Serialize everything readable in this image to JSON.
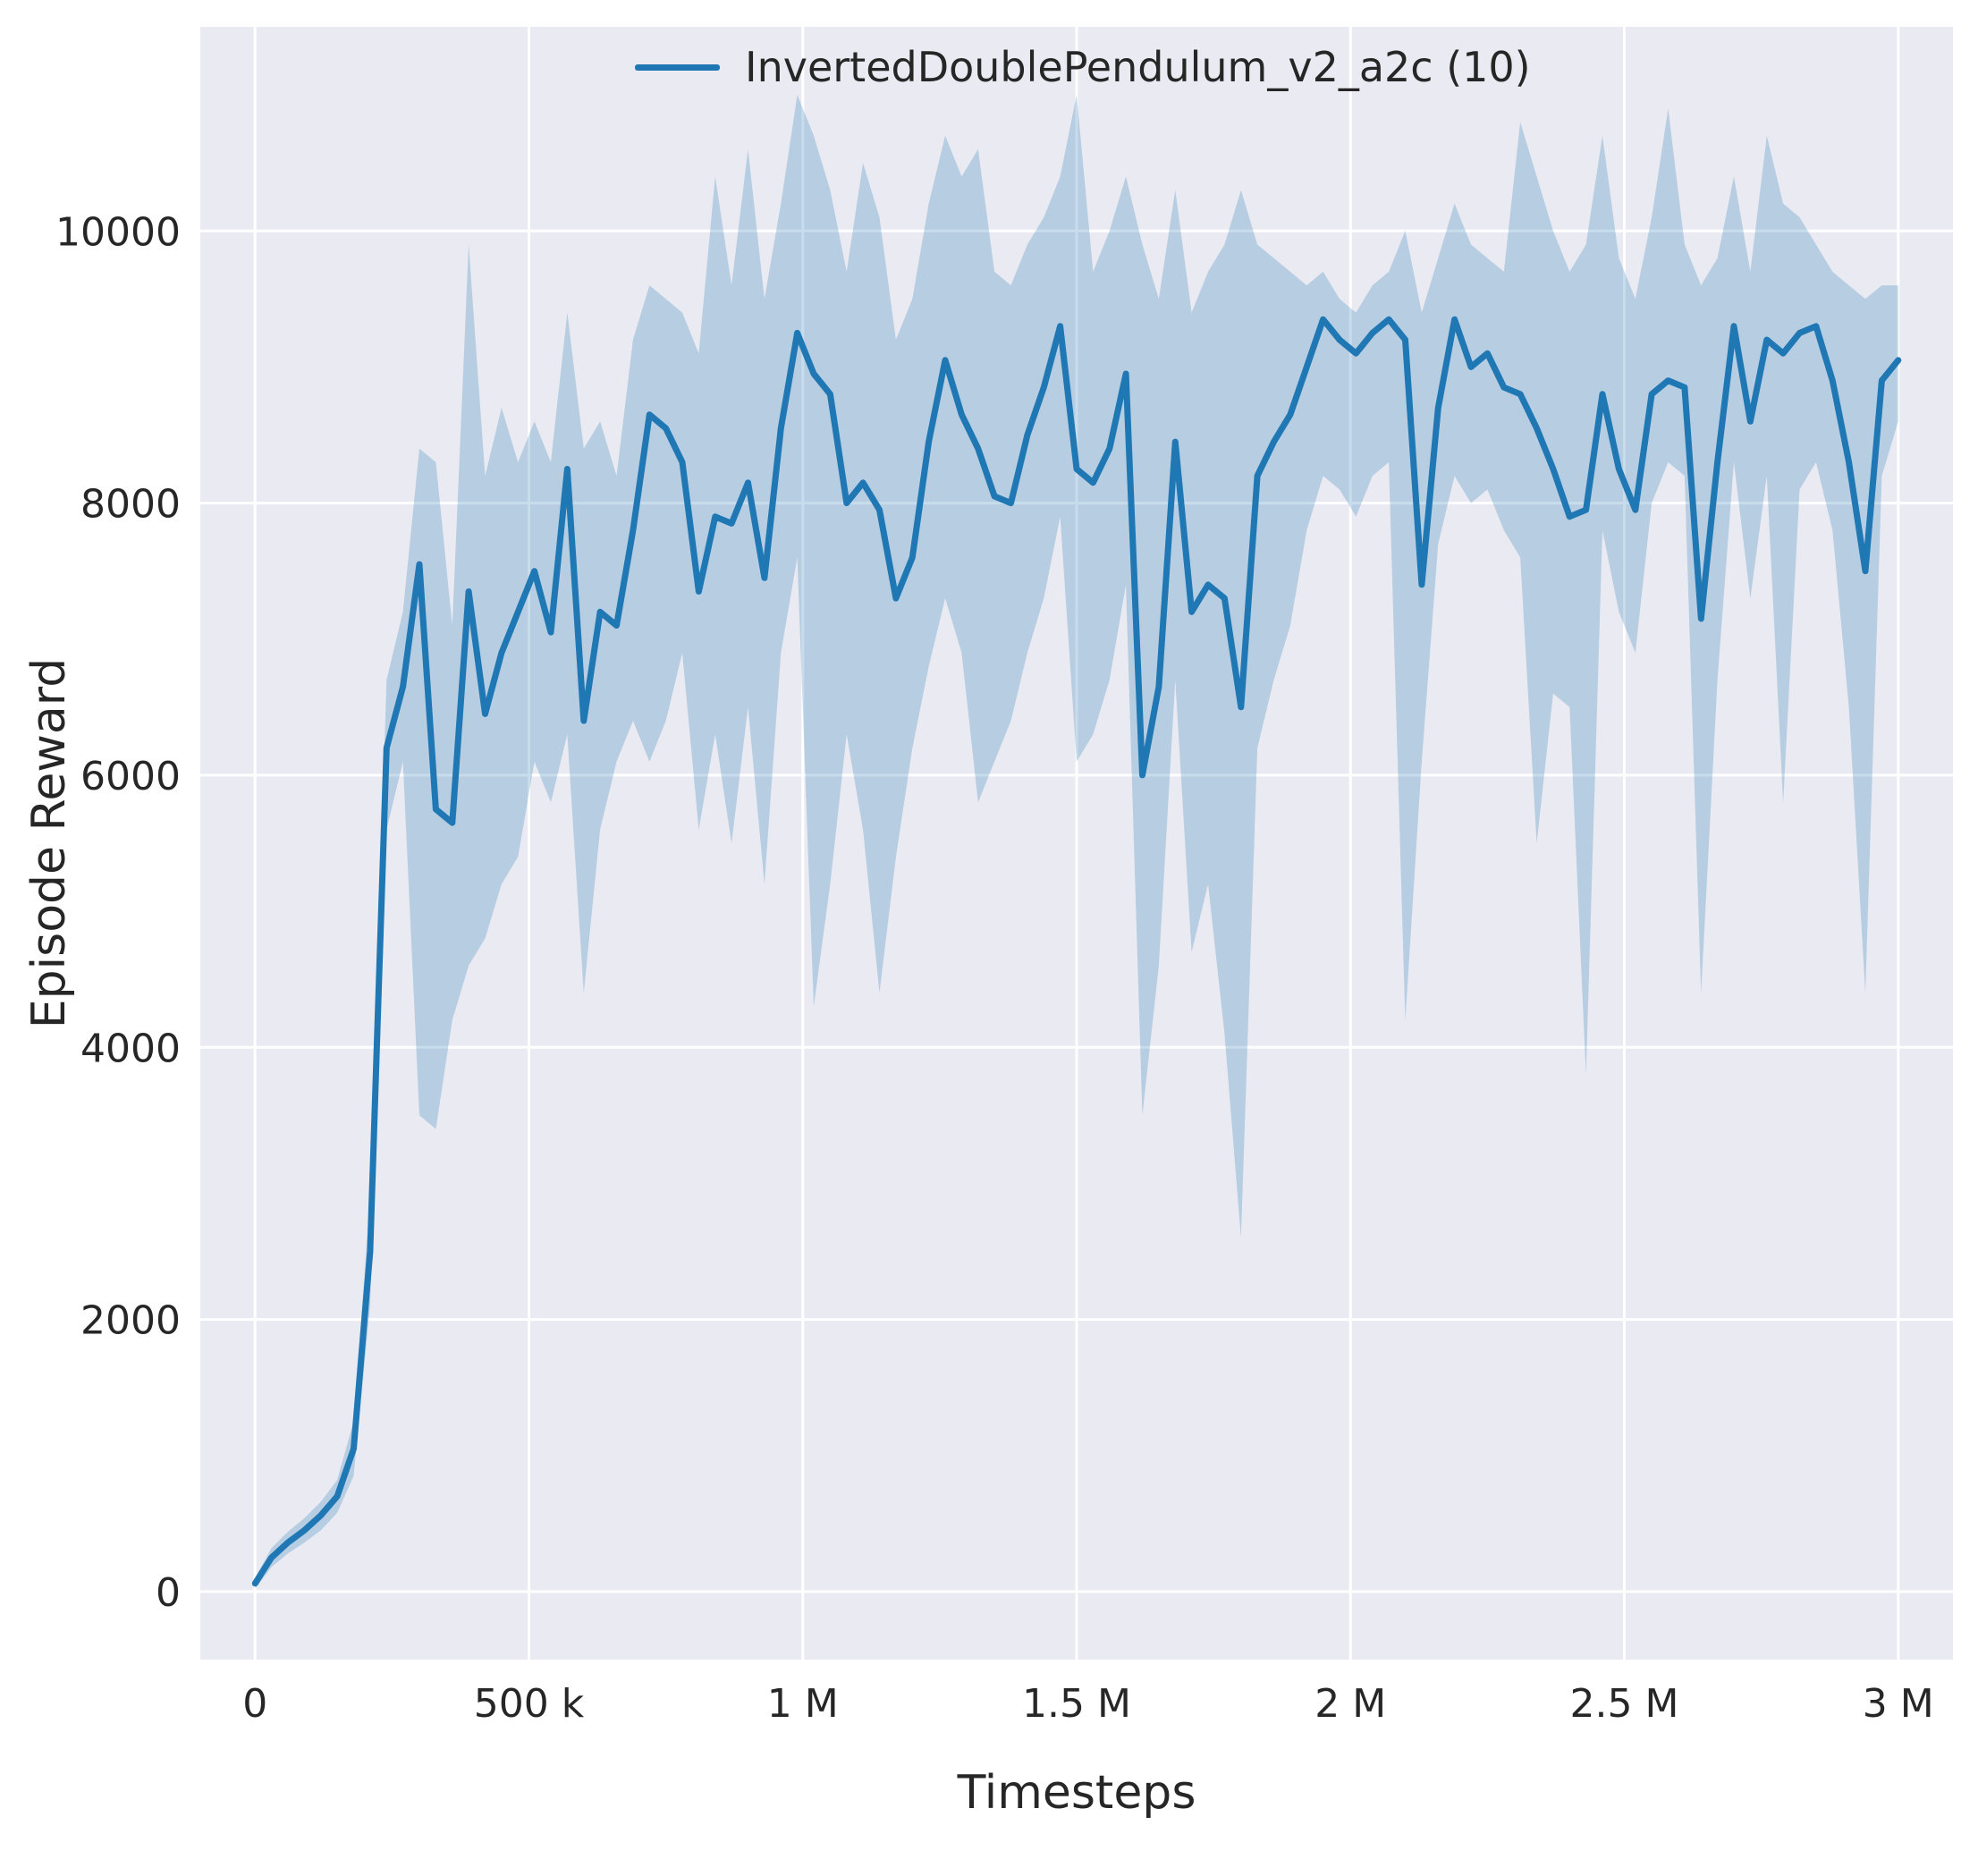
{
  "figure": {
    "xlabel": "Timesteps",
    "ylabel": "Episode Reward"
  },
  "colors": {
    "figure_background": "#ffffff",
    "plot_background": "#eaeaf2",
    "grid": "#ffffff",
    "text": "#262626",
    "line": "#1f77b4",
    "band": "rgba(31,119,180,0.25)"
  },
  "chart_data": {
    "type": "line",
    "title": "",
    "xlabel": "Timesteps",
    "ylabel": "Episode Reward",
    "grid": true,
    "legend_position": "upper center inside plot",
    "xlim": [
      -100000,
      3100000
    ],
    "ylim": [
      -500,
      11500
    ],
    "xticks": {
      "values": [
        0,
        500000,
        1000000,
        1500000,
        2000000,
        2500000,
        3000000
      ],
      "labels": [
        "0",
        "500 k",
        "1 M",
        "1.5 M",
        "2 M",
        "2.5 M",
        "3 M"
      ]
    },
    "yticks": {
      "values": [
        0,
        2000,
        4000,
        6000,
        8000,
        10000
      ],
      "labels": [
        "0",
        "2000",
        "4000",
        "6000",
        "8000",
        "10000"
      ]
    },
    "series": [
      {
        "name": "InvertedDoublePendulum_v2_a2c (10)",
        "color": "#1f77b4",
        "band_color": "rgba(31,119,180,0.25)",
        "x": [
          0,
          30000,
          60000,
          90000,
          120000,
          150000,
          180000,
          210000,
          240000,
          270000,
          300000,
          330000,
          360000,
          390000,
          420000,
          450000,
          480000,
          510000,
          540000,
          570000,
          600000,
          630000,
          660000,
          690000,
          720000,
          750000,
          780000,
          810000,
          840000,
          870000,
          900000,
          930000,
          960000,
          990000,
          1020000,
          1050000,
          1080000,
          1110000,
          1140000,
          1170000,
          1200000,
          1230000,
          1260000,
          1290000,
          1320000,
          1350000,
          1380000,
          1410000,
          1440000,
          1470000,
          1500000,
          1530000,
          1560000,
          1590000,
          1620000,
          1650000,
          1680000,
          1710000,
          1740000,
          1770000,
          1800000,
          1830000,
          1860000,
          1890000,
          1920000,
          1950000,
          1980000,
          2010000,
          2040000,
          2070000,
          2100000,
          2130000,
          2160000,
          2190000,
          2220000,
          2250000,
          2280000,
          2310000,
          2340000,
          2370000,
          2400000,
          2430000,
          2460000,
          2490000,
          2520000,
          2550000,
          2580000,
          2610000,
          2640000,
          2670000,
          2700000,
          2730000,
          2760000,
          2790000,
          2820000,
          2850000,
          2880000,
          2910000,
          2940000,
          2970000,
          3000000
        ],
        "mean": [
          60,
          250,
          360,
          450,
          560,
          700,
          1050,
          2500,
          6200,
          6650,
          7550,
          5750,
          5650,
          7350,
          6450,
          6900,
          7200,
          7500,
          7050,
          8250,
          6400,
          7200,
          7100,
          7800,
          8650,
          8550,
          8300,
          7350,
          7900,
          7850,
          8150,
          7450,
          8550,
          9250,
          8950,
          8800,
          8000,
          8150,
          7950,
          7300,
          7600,
          8450,
          9050,
          8650,
          8400,
          8050,
          8000,
          8500,
          8850,
          9300,
          8250,
          8150,
          8400,
          8950,
          6000,
          6650,
          8450,
          7200,
          7400,
          7300,
          6500,
          8200,
          8450,
          8650,
          9000,
          9350,
          9200,
          9100,
          9250,
          9350,
          9200,
          7400,
          8700,
          9350,
          9000,
          9100,
          8850,
          8800,
          8550,
          8250,
          7900,
          7950,
          8800,
          8250,
          7950,
          8800,
          8900,
          8850,
          7150,
          8300,
          9300,
          8600,
          9200,
          9100,
          9250,
          9300,
          8900,
          8300,
          7500,
          8900,
          9050
        ],
        "band_low": [
          20,
          180,
          280,
          360,
          450,
          580,
          850,
          2100,
          5600,
          6100,
          3500,
          3400,
          4200,
          4600,
          4800,
          5200,
          5400,
          6100,
          5800,
          6300,
          4400,
          5600,
          6100,
          6400,
          6100,
          6400,
          6900,
          5600,
          6300,
          5500,
          6500,
          5200,
          6900,
          7600,
          4300,
          5200,
          6300,
          5600,
          4400,
          5400,
          6200,
          6800,
          7300,
          6900,
          5800,
          6100,
          6400,
          6900,
          7300,
          7900,
          6100,
          6300,
          6700,
          7400,
          3500,
          4600,
          6700,
          4700,
          5200,
          4100,
          2600,
          6200,
          6700,
          7100,
          7800,
          8200,
          8100,
          7900,
          8200,
          8300,
          4200,
          6100,
          7700,
          8200,
          8000,
          8100,
          7800,
          7600,
          5500,
          6600,
          6500,
          3800,
          7800,
          7200,
          6900,
          8000,
          8300,
          8200,
          4400,
          6700,
          8300,
          7300,
          8200,
          5800,
          8100,
          8300,
          7800,
          6500,
          4400,
          8200,
          8600
        ],
        "band_high": [
          100,
          320,
          440,
          540,
          660,
          820,
          1250,
          2900,
          6700,
          7200,
          8400,
          8300,
          7100,
          9900,
          8200,
          8700,
          8300,
          8600,
          8300,
          9400,
          8400,
          8600,
          8200,
          9200,
          9600,
          9500,
          9400,
          9100,
          10400,
          9600,
          10600,
          9500,
          10200,
          11000,
          10700,
          10300,
          9700,
          10500,
          10100,
          9200,
          9500,
          10200,
          10700,
          10400,
          10600,
          9700,
          9600,
          9900,
          10100,
          10400,
          11000,
          9700,
          10000,
          10400,
          9900,
          9500,
          10300,
          9400,
          9700,
          9900,
          10300,
          9900,
          9800,
          9700,
          9600,
          9700,
          9500,
          9400,
          9600,
          9700,
          10000,
          9400,
          9800,
          10200,
          9900,
          9800,
          9700,
          10800,
          10400,
          10000,
          9700,
          9900,
          10700,
          9800,
          9500,
          10100,
          10900,
          9900,
          9600,
          9800,
          10400,
          9700,
          10700,
          10200,
          10100,
          9900,
          9700,
          9600,
          9500,
          9600,
          9600
        ]
      }
    ]
  }
}
